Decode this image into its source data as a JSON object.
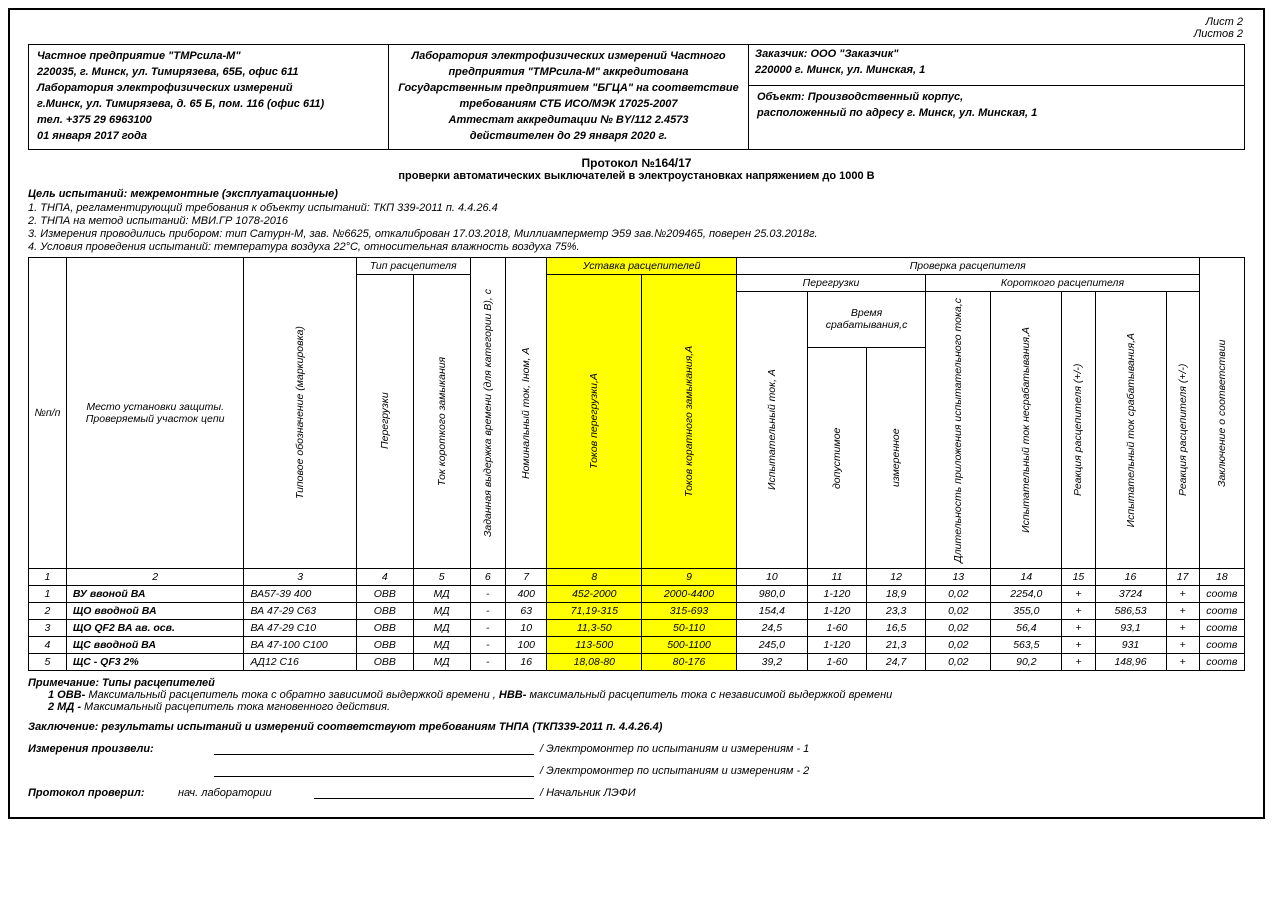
{
  "page_meta": {
    "sheet": "Лист 2",
    "sheets_total": "Листов 2"
  },
  "header": {
    "company": {
      "l1": "Частное предприятие \"ТМРсила-М\"",
      "l2": "220035, г. Минск, ул. Тимирязева, 65Б, офис 611",
      "l3": "Лаборатория электрофизических измерений",
      "l4": "г.Минск, ул. Тимирязева, д. 65 Б, пом. 116 (офис 611)",
      "l5": "тел. +375 29 6963100",
      "l6": "01 января 2017 года"
    },
    "lab": {
      "l1": "Лаборатория электрофизических измерений Частного",
      "l2": "предприятия \"ТМРсила-М\" аккредитована",
      "l3": "Государственным предприятием \"БГЦА\" на соответствие",
      "l4": "требованиям СТБ ИСО/МЭК 17025-2007",
      "l5": "Аттестат аккредитации № BY/112 2.4573",
      "l6": "действителен до 29 января 2020 г."
    },
    "customer": {
      "top1": "Заказчик:  ООО \"Заказчик\"",
      "top2": "220000 г. Минск, ул. Минская, 1",
      "bot1": "Объект:  Производственный корпус,",
      "bot2": "расположенный по адресу г. Минск, ул. Минская, 1"
    }
  },
  "protocol": {
    "title": "Протокол №164/17",
    "sub": "проверки автоматических выключателей в электроустановках напряжением до 1000 В"
  },
  "goal": "Цель испытаний: межремонтные (эксплуатационные)",
  "notes": [
    "1. ТНПА, регламентирующий требования к объекту испытаний: ТКП 339-2011 п. 4.4.26.4",
    "2. ТНПА на метод испытаний: МВИ.ГР 1078-2016",
    "3. Измерения проводились прибором: тип Сатурн-М, зав. №6625, откалиброван 17.03.2018, Миллиамперметр Э59 зав.№209465, поверен 25.03.2018г.",
    "4. Условия проведения испытаний: температура воздуха 22°С, относительная влажность воздуха 75%."
  ],
  "table": {
    "headers": {
      "npp": "№п/п",
      "place": "Место установки защиты. Проверяемый участок цепи",
      "type_group": "Тип расцепителя",
      "marking": "Типовое обозначение (маркировка)",
      "overload": "Перегрузки",
      "short": "Ток короткого замыкания",
      "delay": "Заданная выдержка времени (для категории В), с",
      "inom": "Номинальный ток,  Iном, А",
      "setting_group": "Уставка расцепителей",
      "set_overload": "Токов перегрузки,А",
      "set_short": "Токов коратного замыкания,А",
      "check_group": "Проверка расцепителя",
      "overload_sub": "Перегрузки",
      "short_sub": "Короткого расцепителя",
      "test_current": "Испытательный ток, А",
      "trip_time": "Время срабатывания,с",
      "allowed": "допустимое",
      "measured": "измеренное",
      "duration": "Длительность приложения испытательного тока,с",
      "nontrip": "Испытательный ток несрабатывания,А",
      "react1": "Реакция расцепителя (+/-)",
      "trip_current": "Испытательный ток срабатывания,А",
      "react2": "Реакция расцепителя (+/-)",
      "conclusion": "Заключение о соответствии"
    },
    "colnums": [
      "1",
      "2",
      "3",
      "4",
      "5",
      "6",
      "7",
      "8",
      "9",
      "10",
      "11",
      "12",
      "13",
      "14",
      "15",
      "16",
      "17",
      "18"
    ],
    "hl_color": "#ffff00",
    "rows": [
      {
        "n": "1",
        "place": "ВУ ввоной ВА",
        "mark": "ВА57-39 400",
        "ov": "ОВВ",
        "sh": "МД",
        "del": "-",
        "inom": "400",
        "s1": "452-2000",
        "s2": "2000-4400",
        "c10": "980,0",
        "c11": "1-120",
        "c12": "18,9",
        "c13": "0,02",
        "c14": "2254,0",
        "c15": "+",
        "c16": "3724",
        "c17": "+",
        "c18": "соотв"
      },
      {
        "n": "2",
        "place": "ЩО вводной ВА",
        "mark": "ВА 47-29 С63",
        "ov": "ОВВ",
        "sh": "МД",
        "del": "-",
        "inom": "63",
        "s1": "71,19-315",
        "s2": "315-693",
        "c10": "154,4",
        "c11": "1-120",
        "c12": "23,3",
        "c13": "0,02",
        "c14": "355,0",
        "c15": "+",
        "c16": "586,53",
        "c17": "+",
        "c18": "соотв"
      },
      {
        "n": "3",
        "place": "ЩО QF2 ВА ав. осв.",
        "mark": "ВА 47-29 С10",
        "ov": "ОВВ",
        "sh": "МД",
        "del": "-",
        "inom": "10",
        "s1": "11,3-50",
        "s2": "50-110",
        "c10": "24,5",
        "c11": "1-60",
        "c12": "16,5",
        "c13": "0,02",
        "c14": "56,4",
        "c15": "+",
        "c16": "93,1",
        "c17": "+",
        "c18": "соотв"
      },
      {
        "n": "4",
        "place": "ЩС вводной ВА",
        "mark": "ВА 47-100 С100",
        "ov": "ОВВ",
        "sh": "МД",
        "del": "-",
        "inom": "100",
        "s1": "113-500",
        "s2": "500-1100",
        "c10": "245,0",
        "c11": "1-120",
        "c12": "21,3",
        "c13": "0,02",
        "c14": "563,5",
        "c15": "+",
        "c16": "931",
        "c17": "+",
        "c18": "соотв"
      },
      {
        "n": "5",
        "place": "ЩС - QF3 2%",
        "mark": "АД12 С16",
        "ov": "ОВВ",
        "sh": "МД",
        "del": "-",
        "inom": "16",
        "s1": "18,08-80",
        "s2": "80-176",
        "c10": "39,2",
        "c11": "1-60",
        "c12": "24,7",
        "c13": "0,02",
        "c14": "90,2",
        "c15": "+",
        "c16": "148,96",
        "c17": "+",
        "c18": "соотв"
      }
    ]
  },
  "footnotes": {
    "title": "Примечание: Типы расцепителей",
    "f1_b": "1  ОВВ-",
    "f1": "  Максимальный расцепитель тока с обратно зависимой выдержкой времени ,",
    "f1_b2": " НВВ-",
    "f1_2": "  максимальный расцепитель тока с независимой выдержкой времени",
    "f2_b": "2  МД -",
    "f2": "  Максимальный расцепитель тока мгновенного действия."
  },
  "conclusion": "Заключение: результаты испытаний и измерений соответствуют требованиям ТНПА (ТКП339-2011 п. 4.4.26.4)",
  "sigs": {
    "s1_lbl": "Измерения произвели:",
    "s1_after": "/ Электромонтер по испытаниям и измерениям - 1",
    "s2_after": "/ Электромонтер по испытаниям и измерениям - 2",
    "s3_lbl": "Протокол проверил:",
    "s3_mid": "нач. лаборатории",
    "s3_after": "/ Начальник ЛЭФИ"
  }
}
